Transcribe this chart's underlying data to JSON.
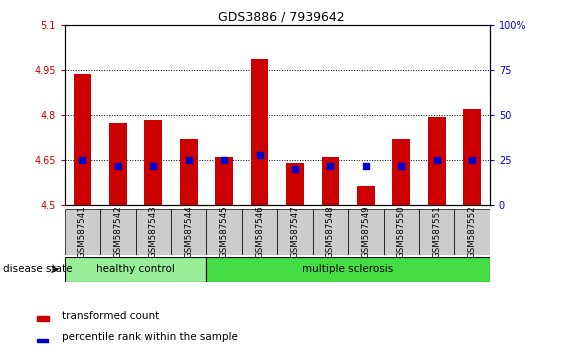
{
  "title": "GDS3886 / 7939642",
  "samples": [
    "GSM587541",
    "GSM587542",
    "GSM587543",
    "GSM587544",
    "GSM587545",
    "GSM587546",
    "GSM587547",
    "GSM587548",
    "GSM587549",
    "GSM587550",
    "GSM587551",
    "GSM587552"
  ],
  "transformed_count": [
    4.935,
    4.775,
    4.785,
    4.72,
    4.66,
    4.985,
    4.64,
    4.66,
    4.565,
    4.72,
    4.795,
    4.82
  ],
  "percentile_rank": [
    25,
    22,
    22,
    25,
    25,
    28,
    20,
    22,
    22,
    22,
    25,
    25
  ],
  "ymin": 4.5,
  "ymax": 5.1,
  "yticks": [
    4.5,
    4.65,
    4.8,
    4.95,
    5.1
  ],
  "ytick_labels": [
    "4.5",
    "4.65",
    "4.8",
    "4.95",
    "5.1"
  ],
  "right_yticks": [
    0,
    25,
    50,
    75,
    100
  ],
  "right_ytick_labels": [
    "0",
    "25",
    "50",
    "75",
    "100%"
  ],
  "bar_color": "#cc0000",
  "dot_color": "#0000cc",
  "bar_width": 0.5,
  "dot_size": 18,
  "healthy_control_count": 4,
  "healthy_color": "#99ee99",
  "ms_color": "#44dd44",
  "label_bar": "transformed count",
  "label_dot": "percentile rank within the sample",
  "disease_label": "disease state",
  "healthy_label": "healthy control",
  "ms_label": "multiple sclerosis",
  "tick_label_color_left": "#cc0000",
  "tick_label_color_right": "#0000cc"
}
